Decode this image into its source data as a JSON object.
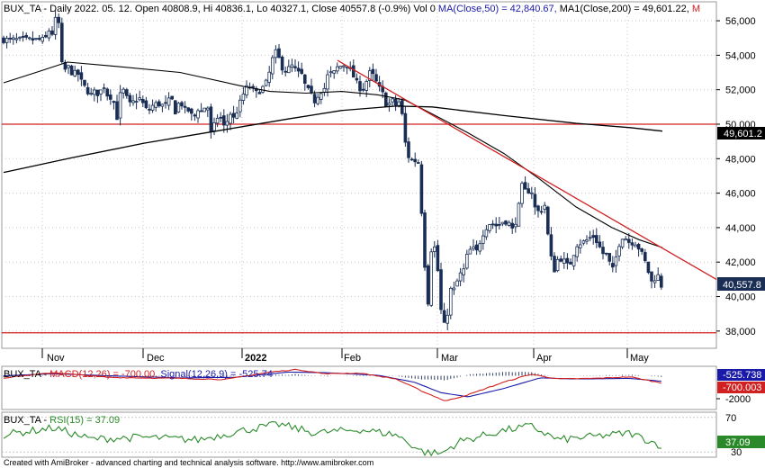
{
  "header": {
    "ticker": "BUX_TA",
    "info": " - Daily 2022. 05. 12. Open 40808.9, Hi 40836.1, Lo 40327.1, Close 40557.8 (-0.9%) Vol 0 ",
    "ma50_text": "MA(Close,50) = 42,840.67,",
    "ma200_text": "MA1(Close,200) = 49,601.22,",
    "trail": "M"
  },
  "macd_header": {
    "ticker": "BUX_TA",
    "sep": " - ",
    "macd_text": "MACD(12,26) = -700.00,",
    "signal_text": "Signal(12,26,9) = -525.74"
  },
  "rsi_header": {
    "ticker": "BUX_TA",
    "sep": " - ",
    "rsi_text": "RSI(15) = 37.09"
  },
  "footer": "Created with AmiBroker - advanced charting and technical analysis software. http://www.amibroker.com",
  "colors": {
    "candle": "#1a2e55",
    "ma": "#000000",
    "trend": "#d02020",
    "macd": "#d02020",
    "signal": "#1a1aa8",
    "hist": "#1a2e55",
    "rsi": "#2a8a2a",
    "grid": "#c8c8c8"
  },
  "chart_data": [
    {
      "type": "candlestick",
      "title": "BUX_TA - Daily",
      "x_labels": [
        "Nov",
        "Dec",
        "2022",
        "Feb",
        "Mar",
        "Apr",
        "May"
      ],
      "y_ticks": [
        38000,
        40000,
        42000,
        44000,
        46000,
        48000,
        50000,
        52000,
        54000,
        56000
      ],
      "ylim": [
        37000,
        57100
      ],
      "grid": true,
      "series": [
        {
          "name": "MA(Close,50)",
          "last_value": 42840.67
        },
        {
          "name": "MA1(Close,200)",
          "last_value": 49601.22,
          "last_label": "49,601.2"
        }
      ],
      "horizontal_lines": [
        50000,
        37900
      ],
      "trendline": {
        "start": [
          "Feb",
          53700
        ],
        "end": [
          "May",
          41000
        ]
      },
      "last_close": 40557.8,
      "last_close_label": "40,557.8",
      "ohlc_anchors": [
        [
          50,
          54.9
        ],
        [
          53,
          55.3
        ],
        [
          56,
          55.6
        ],
        [
          59,
          55.1
        ],
        [
          62,
          56.2
        ],
        [
          65,
          56.0
        ],
        [
          68,
          53.6
        ],
        [
          71,
          53.1
        ],
        [
          76,
          53.3
        ],
        [
          81,
          52.9
        ],
        [
          86,
          53.0
        ],
        [
          91,
          52.4
        ],
        [
          96,
          52.0
        ],
        [
          101,
          51.7
        ],
        [
          106,
          51.9
        ],
        [
          110,
          51.7
        ],
        [
          115,
          52.3
        ],
        [
          120,
          51.6
        ],
        [
          125,
          51.6
        ],
        [
          130,
          50.4
        ],
        [
          135,
          52.2
        ],
        [
          140,
          51.6
        ],
        [
          145,
          51.1
        ],
        [
          150,
          51.4
        ],
        [
          155,
          51.5
        ],
        [
          160,
          51.1
        ],
        [
          164,
          50.7
        ],
        [
          170,
          51.1
        ],
        [
          175,
          51.2
        ],
        [
          180,
          51.1
        ],
        [
          185,
          51.1
        ],
        [
          190,
          51.6
        ],
        [
          195,
          50.7
        ],
        [
          200,
          51.4
        ],
        [
          205,
          50.8
        ],
        [
          210,
          50.8
        ],
        [
          215,
          50.3
        ],
        [
          220,
          50.9
        ],
        [
          225,
          50.7
        ],
        [
          230,
          51.3
        ],
        [
          235,
          49.2
        ],
        [
          240,
          50.4
        ],
        [
          245,
          50.4
        ],
        [
          250,
          49.7
        ],
        [
          255,
          50.7
        ],
        [
          260,
          50.3
        ],
        [
          265,
          51.0
        ],
        [
          270,
          51.7
        ],
        [
          275,
          52.2
        ],
        [
          280,
          52.1
        ],
        [
          285,
          51.8
        ],
        [
          290,
          52.0
        ],
        [
          295,
          52.3
        ],
        [
          300,
          53.1
        ],
        [
          305,
          54.3
        ],
        [
          310,
          53.8
        ],
        [
          315,
          53.1
        ],
        [
          320,
          53.2
        ],
        [
          325,
          53.4
        ],
        [
          330,
          53.0
        ],
        [
          335,
          52.9
        ],
        [
          340,
          52.1
        ],
        [
          345,
          51.8
        ],
        [
          350,
          51.3
        ],
        [
          355,
          51.9
        ],
        [
          360,
          52.0
        ],
        [
          365,
          53.0
        ],
        [
          370,
          52.9
        ],
        [
          375,
          53.3
        ],
        [
          380,
          53.4
        ],
        [
          385,
          53.5
        ],
        [
          390,
          53.1
        ],
        [
          395,
          52.5
        ],
        [
          400,
          52.1
        ],
        [
          405,
          52.1
        ],
        [
          410,
          53.0
        ],
        [
          415,
          52.8
        ],
        [
          420,
          52.2
        ],
        [
          425,
          51.8
        ],
        [
          430,
          51.0
        ],
        [
          435,
          51.4
        ],
        [
          440,
          51.1
        ],
        [
          445,
          51.4
        ],
        [
          450,
          49.0
        ],
        [
          455,
          47.9
        ],
        [
          460,
          47.9
        ],
        [
          465,
          47.8
        ],
        [
          470,
          43.6
        ],
        [
          475,
          39.2
        ],
        [
          480,
          43.4
        ],
        [
          485,
          42.4
        ],
        [
          490,
          39.2
        ],
        [
          495,
          38.0
        ],
        [
          500,
          40.4
        ],
        [
          505,
          40.4
        ],
        [
          510,
          41.2
        ],
        [
          515,
          41.5
        ],
        [
          520,
          42.6
        ],
        [
          525,
          42.8
        ],
        [
          530,
          42.6
        ],
        [
          535,
          43.5
        ],
        [
          540,
          44.0
        ],
        [
          545,
          44.3
        ],
        [
          550,
          44.1
        ],
        [
          555,
          44.2
        ],
        [
          560,
          44.4
        ],
        [
          565,
          44.3
        ],
        [
          570,
          43.8
        ],
        [
          575,
          44.8
        ],
        [
          580,
          46.4
        ],
        [
          585,
          46.0
        ],
        [
          590,
          46.3
        ],
        [
          595,
          45.0
        ],
        [
          600,
          44.9
        ],
        [
          605,
          45.4
        ],
        [
          610,
          43.0
        ],
        [
          615,
          41.4
        ],
        [
          620,
          42.2
        ],
        [
          625,
          42.2
        ],
        [
          630,
          41.8
        ],
        [
          635,
          42.0
        ],
        [
          640,
          43.0
        ],
        [
          645,
          43.1
        ],
        [
          650,
          43.2
        ],
        [
          655,
          43.4
        ],
        [
          660,
          43.5
        ],
        [
          665,
          43.0
        ],
        [
          670,
          42.5
        ],
        [
          675,
          42.4
        ],
        [
          680,
          41.4
        ],
        [
          685,
          42.4
        ],
        [
          690,
          43.5
        ],
        [
          695,
          43.4
        ],
        [
          700,
          43.1
        ],
        [
          705,
          43.2
        ],
        [
          710,
          42.8
        ],
        [
          715,
          42.3
        ],
        [
          720,
          41.5
        ],
        [
          725,
          40.7
        ],
        [
          730,
          41.4
        ],
        [
          735,
          40.6
        ]
      ]
    },
    {
      "type": "line",
      "title": "MACD(12,26)",
      "y_ticks": [
        -2000
      ],
      "series": [
        {
          "name": "MACD(12,26)",
          "last_value": -700.0,
          "last_label": "-700.003"
        },
        {
          "name": "Signal(12,26,9)",
          "last_value": -525.74,
          "last_label": "-525.738"
        }
      ]
    },
    {
      "type": "line",
      "title": "RSI(15)",
      "y_ticks": [
        70,
        30
      ],
      "ylim": [
        24,
        76
      ],
      "series": [
        {
          "name": "RSI(15)",
          "last_value": 37.09,
          "last_label": "37.09"
        }
      ]
    }
  ]
}
